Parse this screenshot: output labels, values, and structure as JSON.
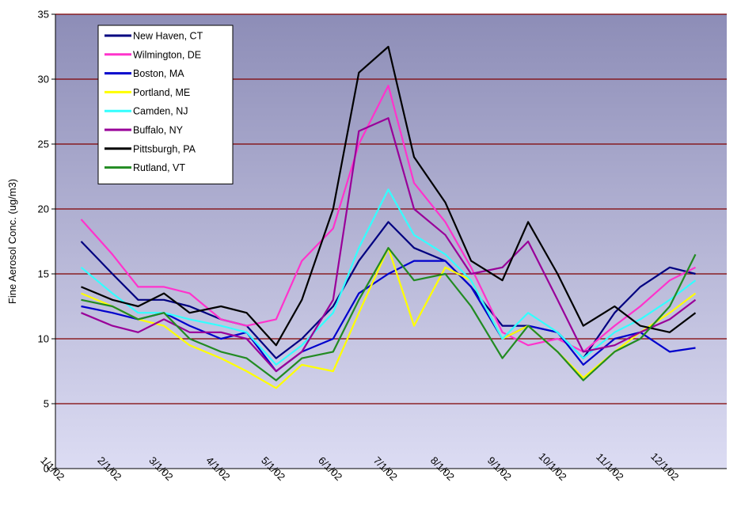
{
  "chart_data": {
    "type": "line",
    "title": "",
    "xlabel": "",
    "ylabel": "Fine Aerosol Conc. (ug/m3)",
    "ylim": [
      0,
      35
    ],
    "yticks": [
      "0",
      "5",
      "10",
      "15",
      "20",
      "25",
      "30",
      "35"
    ],
    "xlim": [
      "2002-01-01",
      "2003-01-01"
    ],
    "xticks": [
      "1/1/02",
      "2/1/02",
      "3/1/02",
      "4/1/02",
      "5/1/02",
      "6/1/02",
      "7/1/02",
      "8/1/02",
      "9/1/02",
      "10/1/02",
      "11/1/02",
      "12/1/02"
    ],
    "grid": true,
    "legend": "top-left",
    "background": {
      "top": "#8d8db7",
      "bottom": "#dcdcf3"
    },
    "gridline_color": "#800000",
    "series": [
      {
        "name": "New Haven, CT",
        "color": "#000080",
        "x": [
          "2002-01-15",
          "2002-02-01",
          "2002-02-15",
          "2002-03-01",
          "2002-03-15",
          "2002-04-01",
          "2002-04-15",
          "2002-05-01",
          "2002-05-15",
          "2002-06-01",
          "2002-06-15",
          "2002-07-01",
          "2002-07-15",
          "2002-08-01",
          "2002-08-15",
          "2002-09-01",
          "2002-09-15",
          "2002-10-01",
          "2002-10-15",
          "2002-11-01",
          "2002-11-15",
          "2002-12-01",
          "2002-12-15"
        ],
        "y": [
          17.5,
          15,
          13,
          13,
          12.5,
          11.5,
          11,
          8.5,
          10,
          12.5,
          16,
          19,
          17,
          16,
          14,
          11,
          11,
          10.5,
          8.5,
          12,
          14,
          15.5,
          15
        ]
      },
      {
        "name": "Wilmington, DE",
        "color": "#ff33cc",
        "x": [
          "2002-01-15",
          "2002-02-01",
          "2002-02-15",
          "2002-03-01",
          "2002-03-15",
          "2002-04-01",
          "2002-04-15",
          "2002-05-01",
          "2002-05-15",
          "2002-06-01",
          "2002-06-15",
          "2002-07-01",
          "2002-07-15",
          "2002-08-01",
          "2002-08-15",
          "2002-09-01",
          "2002-09-15",
          "2002-10-01",
          "2002-10-15",
          "2002-11-01",
          "2002-11-15",
          "2002-12-01",
          "2002-12-15"
        ],
        "y": [
          19.2,
          16.5,
          14,
          14,
          13.5,
          11.5,
          11,
          11.5,
          16,
          18.5,
          25,
          29.5,
          22,
          19,
          15.5,
          10.5,
          9.5,
          10,
          9,
          11,
          12.5,
          14.5,
          15.5
        ]
      },
      {
        "name": "Boston, MA",
        "color": "#0000cc",
        "x": [
          "2002-01-15",
          "2002-02-01",
          "2002-02-15",
          "2002-03-01",
          "2002-03-15",
          "2002-04-01",
          "2002-04-15",
          "2002-05-01",
          "2002-05-15",
          "2002-06-01",
          "2002-06-15",
          "2002-07-01",
          "2002-07-15",
          "2002-08-01",
          "2002-08-15",
          "2002-09-01",
          "2002-09-15",
          "2002-10-01",
          "2002-10-15",
          "2002-11-01",
          "2002-11-15",
          "2002-12-01",
          "2002-12-15"
        ],
        "y": [
          12.5,
          12,
          11.5,
          12,
          11,
          10,
          10.5,
          7.5,
          9,
          10,
          13.5,
          15,
          16,
          16,
          14,
          10,
          11,
          10.5,
          8,
          10,
          10.5,
          9,
          9.3
        ]
      },
      {
        "name": "Portland, ME",
        "color": "#ffff00",
        "x": [
          "2002-01-15",
          "2002-02-01",
          "2002-02-15",
          "2002-03-01",
          "2002-03-15",
          "2002-04-01",
          "2002-04-15",
          "2002-05-01",
          "2002-05-15",
          "2002-06-01",
          "2002-06-15",
          "2002-07-01",
          "2002-07-15",
          "2002-08-01",
          "2002-08-15",
          "2002-09-01",
          "2002-09-15",
          "2002-10-01",
          "2002-10-15",
          "2002-11-01",
          "2002-11-15",
          "2002-12-01",
          "2002-12-15"
        ],
        "y": [
          13.5,
          12.5,
          11.5,
          11,
          9.5,
          8.5,
          7.5,
          6.2,
          8,
          7.5,
          12,
          17,
          11,
          15.5,
          14.5,
          10,
          11,
          9,
          7,
          9,
          10.5,
          12,
          13.5
        ]
      },
      {
        "name": "Camden, NJ",
        "color": "#33ffff",
        "x": [
          "2002-01-15",
          "2002-02-01",
          "2002-02-15",
          "2002-03-01",
          "2002-03-15",
          "2002-04-01",
          "2002-04-15",
          "2002-05-01",
          "2002-05-15",
          "2002-06-01",
          "2002-06-15",
          "2002-07-01",
          "2002-07-15",
          "2002-08-01",
          "2002-08-15",
          "2002-09-01",
          "2002-09-15",
          "2002-10-01",
          "2002-10-15",
          "2002-11-01",
          "2002-11-15",
          "2002-12-01",
          "2002-12-15"
        ],
        "y": [
          15.5,
          13.5,
          12,
          12,
          11.5,
          11,
          10.5,
          8,
          9.5,
          12,
          17,
          21.5,
          18,
          16.5,
          14.5,
          10,
          12,
          10.5,
          8.5,
          10.5,
          11.5,
          13,
          14.5
        ]
      },
      {
        "name": "Buffalo, NY",
        "color": "#990099",
        "x": [
          "2002-01-15",
          "2002-02-01",
          "2002-02-15",
          "2002-03-01",
          "2002-03-15",
          "2002-04-01",
          "2002-04-15",
          "2002-05-01",
          "2002-05-15",
          "2002-06-01",
          "2002-06-15",
          "2002-07-01",
          "2002-07-15",
          "2002-08-01",
          "2002-08-15",
          "2002-09-01",
          "2002-09-15",
          "2002-10-01",
          "2002-10-15",
          "2002-11-01",
          "2002-11-15",
          "2002-12-01",
          "2002-12-15"
        ],
        "y": [
          12,
          11,
          10.5,
          11.5,
          10.5,
          10.5,
          10,
          7.5,
          9,
          13,
          26,
          27,
          20,
          18,
          15,
          15.5,
          17.5,
          13,
          9,
          9.5,
          10.5,
          11.5,
          13
        ]
      },
      {
        "name": "Pittsburgh, PA",
        "color": "#000000",
        "x": [
          "2002-01-15",
          "2002-02-01",
          "2002-02-15",
          "2002-03-01",
          "2002-03-15",
          "2002-04-01",
          "2002-04-15",
          "2002-05-01",
          "2002-05-15",
          "2002-06-01",
          "2002-06-15",
          "2002-07-01",
          "2002-07-15",
          "2002-08-01",
          "2002-08-15",
          "2002-09-01",
          "2002-09-15",
          "2002-10-01",
          "2002-10-15",
          "2002-11-01",
          "2002-11-15",
          "2002-12-01",
          "2002-12-15"
        ],
        "y": [
          14,
          13,
          12.5,
          13.5,
          12,
          12.5,
          12,
          9.5,
          13,
          20,
          30.5,
          32.5,
          24,
          20.5,
          16,
          14.5,
          19,
          15,
          11,
          12.5,
          11,
          10.5,
          12
        ]
      },
      {
        "name": "Rutland, VT",
        "color": "#228b22",
        "x": [
          "2002-01-15",
          "2002-02-01",
          "2002-02-15",
          "2002-03-01",
          "2002-03-15",
          "2002-04-01",
          "2002-04-15",
          "2002-05-01",
          "2002-05-15",
          "2002-06-01",
          "2002-06-15",
          "2002-07-01",
          "2002-07-15",
          "2002-08-01",
          "2002-08-15",
          "2002-09-01",
          "2002-09-15",
          "2002-10-01",
          "2002-10-15",
          "2002-11-01",
          "2002-11-15",
          "2002-12-01",
          "2002-12-15"
        ],
        "y": [
          13,
          12.5,
          11.5,
          12,
          10,
          9,
          8.5,
          6.8,
          8.5,
          9,
          13,
          17,
          14.5,
          15,
          12.5,
          8.5,
          11,
          9,
          6.8,
          9,
          10,
          12.5,
          16.5
        ]
      }
    ]
  }
}
